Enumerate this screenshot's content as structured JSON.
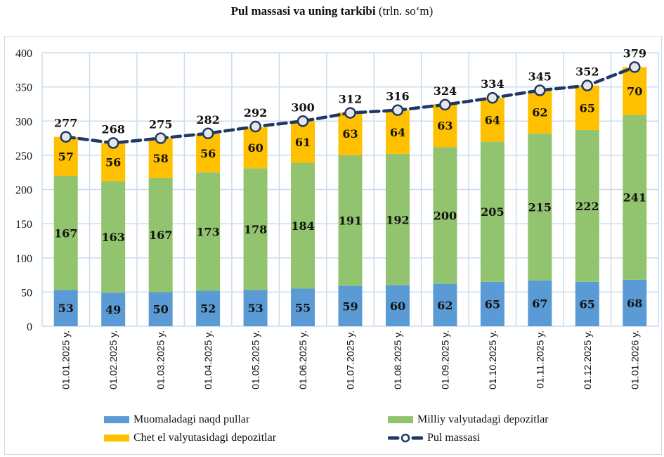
{
  "title": {
    "bold": "Pul massasi va uning tarkibi",
    "unit": "(trln. so‘m)"
  },
  "colors": {
    "cash": "#5b9bd5",
    "national": "#92c46f",
    "foreign": "#ffc000",
    "line": "#1f3864",
    "marker_fill": "#e6e6e6",
    "grid": "#c9dcef"
  },
  "chart_data": {
    "type": "bar",
    "stacked": true,
    "title": "Pul massasi va uning tarkibi (trln. so‘m)",
    "xlabel": "",
    "ylabel": "",
    "ylim": [
      0,
      400
    ],
    "yticks": [
      0,
      50,
      100,
      150,
      200,
      250,
      300,
      350,
      400
    ],
    "grid": true,
    "legend_position": "bottom",
    "categories": [
      "01.01.2025 y.",
      "01.02.2025 y.",
      "01.03.2025 y.",
      "01.04.2025 y.",
      "01.05.2025 y.",
      "01.06.2025 y.",
      "01.07.2025 y.",
      "01.08.2025 y.",
      "01.09.2025 y.",
      "01.10.2025 y.",
      "01.11.2025 y.",
      "01.12.2025 y.",
      "01.01.2026 y."
    ],
    "series": [
      {
        "name": "Muomaladagi naqd pullar",
        "type": "bar",
        "color_key": "cash",
        "values": [
          53,
          49,
          50,
          52,
          53,
          55,
          59,
          60,
          62,
          65,
          67,
          65,
          68
        ]
      },
      {
        "name": "Milliy valyutadagi depozitlar",
        "type": "bar",
        "color_key": "national",
        "values": [
          167,
          163,
          167,
          173,
          178,
          184,
          191,
          192,
          200,
          205,
          215,
          222,
          241
        ]
      },
      {
        "name": "Chet el valyutasidagi depozitlar",
        "type": "bar",
        "color_key": "foreign",
        "values": [
          57,
          56,
          58,
          56,
          60,
          61,
          63,
          64,
          63,
          64,
          62,
          65,
          70
        ]
      },
      {
        "name": "Pul massasi",
        "type": "line",
        "color_key": "line",
        "values": [
          277,
          268,
          275,
          282,
          292,
          300,
          312,
          316,
          324,
          334,
          345,
          352,
          379
        ]
      }
    ]
  },
  "legend": [
    {
      "label": "Muomaladagi naqd pullar",
      "kind": "bar",
      "color_key": "cash"
    },
    {
      "label": "Milliy valyutadagi depozitlar",
      "kind": "bar",
      "color_key": "national"
    },
    {
      "label": "Chet el valyutasidagi depozitlar",
      "kind": "bar",
      "color_key": "foreign"
    },
    {
      "label": "Pul massasi",
      "kind": "line",
      "color_key": "line"
    }
  ]
}
